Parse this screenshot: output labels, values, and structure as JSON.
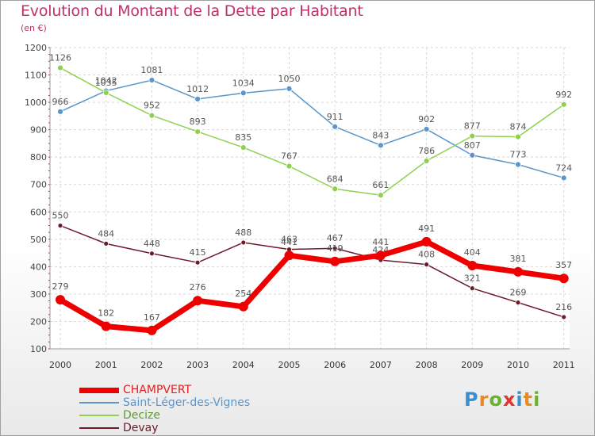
{
  "title": "Evolution du Montant de la Dette par Habitant",
  "unit_label": "(en €)",
  "logo": {
    "letters": [
      "P",
      "r",
      "o",
      "x",
      "i",
      "t",
      "i"
    ],
    "colors": [
      "#3a8fd0",
      "#e98a22",
      "#6ab42c",
      "#e0362e",
      "#3a8fd0",
      "#e98a22",
      "#6ab42c"
    ]
  },
  "chart_data": {
    "type": "line",
    "x": [
      "2000",
      "2001",
      "2002",
      "2003",
      "2004",
      "2005",
      "2006",
      "2007",
      "2008",
      "2009",
      "2010",
      "2011"
    ],
    "ylim": [
      100,
      1200
    ],
    "yticks": [
      "100",
      "200",
      "300",
      "400",
      "500",
      "600",
      "700",
      "800",
      "900",
      "1000",
      "1100",
      "1200"
    ],
    "grid": true,
    "legend_position": "bottom-left",
    "series": [
      {
        "name": "Saint-Léger-des-Vignes",
        "color": "#5b95c9",
        "values": [
          966,
          1042,
          1081,
          1012,
          1034,
          1050,
          911,
          843,
          902,
          807,
          773,
          724
        ],
        "labels": [
          "966",
          "1042",
          "1081",
          "1012",
          "1034",
          "1050",
          "911",
          "843",
          "902",
          "807",
          "773",
          "724"
        ]
      },
      {
        "name": "Decize",
        "color": "#8fd14f",
        "values": [
          1126,
          1035,
          952,
          893,
          835,
          767,
          684,
          661,
          786,
          877,
          874,
          992
        ],
        "labels": [
          "1126",
          "1035",
          "952",
          "893",
          "835",
          "767",
          "684",
          "661",
          "786",
          "877",
          "874",
          "992"
        ]
      },
      {
        "name": "Devay",
        "color": "#6e1a2a",
        "values": [
          550,
          484,
          448,
          415,
          488,
          463,
          467,
          424,
          408,
          321,
          269,
          216
        ],
        "labels": [
          "550",
          "484",
          "448",
          "415",
          "488",
          "463",
          "467",
          "424",
          "408",
          "321",
          "269",
          "216"
        ]
      },
      {
        "name": "CHAMPVERT",
        "color": "#ee0000",
        "values": [
          279,
          182,
          167,
          276,
          254,
          441,
          419,
          441,
          491,
          404,
          381,
          357
        ],
        "labels": [
          "279",
          "182",
          "167",
          "276",
          "254",
          "441",
          "419",
          "441",
          "491",
          "404",
          "381",
          "357"
        ]
      }
    ],
    "legend": [
      "CHAMPVERT",
      "Saint-Léger-des-Vignes",
      "Decize",
      "Devay"
    ]
  }
}
